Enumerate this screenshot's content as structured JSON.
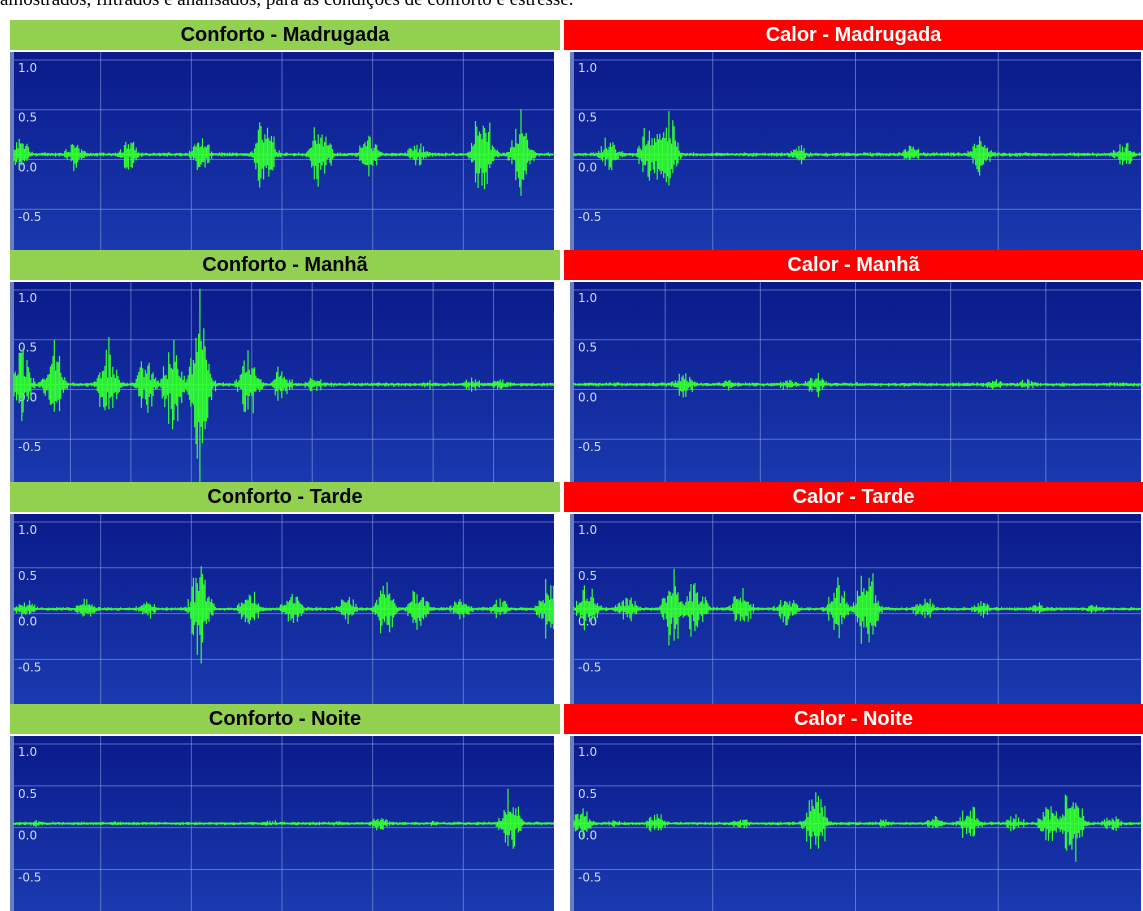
{
  "caption": "amostrados, filtrados e analisados, para as condições de conforto e estresse.",
  "colors": {
    "conforto_header": "#92d050",
    "calor_header": "#ff0000",
    "plot_bg_top": "#0a1a8a",
    "plot_bg_bottom": "#1a3ab0",
    "wave": "#33ff33",
    "grid": "#8aa0e0",
    "axis_text": "#d0d8ff"
  },
  "chart_data": [
    {
      "type": "line",
      "title": "Conforto - Madrugada",
      "ytick_labels": [
        "1.0",
        "0.5",
        "0.0",
        "-0.5"
      ],
      "ylim": [
        -0.9,
        1.0
      ],
      "grid": true,
      "bursts": [
        [
          0.02,
          0.18
        ],
        [
          0.12,
          0.16
        ],
        [
          0.22,
          0.18
        ],
        [
          0.35,
          0.22
        ],
        [
          0.47,
          0.5
        ],
        [
          0.57,
          0.42
        ],
        [
          0.66,
          0.25
        ],
        [
          0.75,
          0.15
        ],
        [
          0.87,
          0.6
        ],
        [
          0.94,
          0.45
        ]
      ]
    },
    {
      "type": "line",
      "title": "Calor - Madrugada",
      "ytick_labels": [
        "1.0",
        "0.5",
        "0.0",
        "-0.5"
      ],
      "ylim": [
        -0.9,
        1.0
      ],
      "grid": true,
      "bursts": [
        [
          0.07,
          0.2
        ],
        [
          0.14,
          0.4
        ],
        [
          0.17,
          0.5
        ],
        [
          0.4,
          0.1
        ],
        [
          0.6,
          0.1
        ],
        [
          0.72,
          0.22
        ],
        [
          0.97,
          0.15
        ]
      ]
    },
    {
      "type": "line",
      "title": "Conforto - Manhã",
      "ytick_labels": [
        "1.0",
        "0.5",
        "0.0",
        "-0.5"
      ],
      "ylim": [
        -0.9,
        1.0
      ],
      "grid": true,
      "bursts": [
        [
          0.02,
          0.4
        ],
        [
          0.08,
          0.5
        ],
        [
          0.18,
          0.45
        ],
        [
          0.25,
          0.3
        ],
        [
          0.3,
          0.55
        ],
        [
          0.35,
          0.95
        ],
        [
          0.44,
          0.45
        ],
        [
          0.5,
          0.2
        ],
        [
          0.56,
          0.1
        ],
        [
          0.77,
          0.05
        ],
        [
          0.85,
          0.08
        ],
        [
          0.9,
          0.08
        ]
      ]
    },
    {
      "type": "line",
      "title": "Calor - Manhã",
      "ytick_labels": [
        "1.0",
        "0.5",
        "0.0",
        "-0.5"
      ],
      "ylim": [
        -0.9,
        1.0
      ],
      "grid": true,
      "bursts": [
        [
          0.2,
          0.15
        ],
        [
          0.28,
          0.06
        ],
        [
          0.38,
          0.06
        ],
        [
          0.43,
          0.13
        ],
        [
          0.58,
          0.03
        ],
        [
          0.74,
          0.06
        ],
        [
          0.8,
          0.06
        ]
      ]
    },
    {
      "type": "line",
      "title": "Conforto - Tarde",
      "ytick_labels": [
        "1.0",
        "0.5",
        "0.0",
        "-0.5"
      ],
      "ylim": [
        -0.9,
        1.0
      ],
      "grid": true,
      "bursts": [
        [
          0.03,
          0.12
        ],
        [
          0.14,
          0.12
        ],
        [
          0.25,
          0.14
        ],
        [
          0.35,
          0.6
        ],
        [
          0.44,
          0.3
        ],
        [
          0.52,
          0.25
        ],
        [
          0.62,
          0.2
        ],
        [
          0.69,
          0.35
        ],
        [
          0.75,
          0.3
        ],
        [
          0.83,
          0.15
        ],
        [
          0.9,
          0.12
        ],
        [
          0.99,
          0.35
        ]
      ]
    },
    {
      "type": "line",
      "title": "Calor - Tarde",
      "ytick_labels": [
        "1.0",
        "0.5",
        "0.0",
        "-0.5"
      ],
      "ylim": [
        -0.9,
        1.0
      ],
      "grid": true,
      "bursts": [
        [
          0.03,
          0.3
        ],
        [
          0.1,
          0.2
        ],
        [
          0.18,
          0.45
        ],
        [
          0.22,
          0.35
        ],
        [
          0.3,
          0.25
        ],
        [
          0.38,
          0.2
        ],
        [
          0.47,
          0.35
        ],
        [
          0.52,
          0.6
        ],
        [
          0.62,
          0.15
        ],
        [
          0.72,
          0.1
        ],
        [
          0.82,
          0.08
        ],
        [
          0.92,
          0.06
        ]
      ]
    },
    {
      "type": "line",
      "title": "Conforto - Noite",
      "ytick_labels": [
        "1.0",
        "0.5",
        "0.0",
        "-0.5"
      ],
      "ylim": [
        -0.9,
        1.0
      ],
      "grid": true,
      "bursts": [
        [
          0.05,
          0.04
        ],
        [
          0.2,
          0.03
        ],
        [
          0.35,
          0.03
        ],
        [
          0.48,
          0.05
        ],
        [
          0.6,
          0.03
        ],
        [
          0.68,
          0.1
        ],
        [
          0.78,
          0.04
        ],
        [
          0.92,
          0.4
        ]
      ]
    },
    {
      "type": "line",
      "title": "Calor - Noite",
      "ytick_labels": [
        "1.0",
        "0.5",
        "0.0",
        "-0.5"
      ],
      "ylim": [
        -0.9,
        1.0
      ],
      "grid": true,
      "bursts": [
        [
          0.02,
          0.2
        ],
        [
          0.08,
          0.05
        ],
        [
          0.15,
          0.15
        ],
        [
          0.3,
          0.08
        ],
        [
          0.43,
          0.5
        ],
        [
          0.55,
          0.06
        ],
        [
          0.64,
          0.08
        ],
        [
          0.7,
          0.25
        ],
        [
          0.78,
          0.1
        ],
        [
          0.84,
          0.3
        ],
        [
          0.88,
          0.55
        ],
        [
          0.95,
          0.1
        ]
      ]
    }
  ]
}
